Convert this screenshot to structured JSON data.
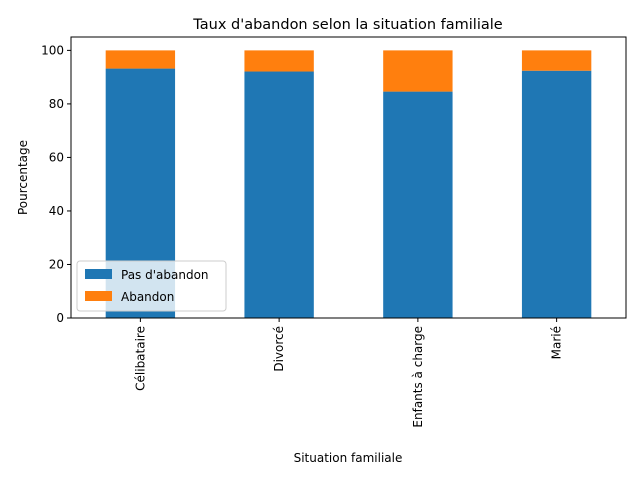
{
  "chart_data": {
    "type": "bar",
    "stacked": true,
    "title": "Taux d'abandon selon la situation familiale",
    "xlabel": "Situation familiale",
    "ylabel": "Pourcentage",
    "categories": [
      "Célibataire",
      "Divorcé",
      "Enfants à charge",
      "Marié"
    ],
    "series": [
      {
        "name": "Pas d'abandon",
        "values": [
          93.2,
          92.1,
          84.6,
          92.4
        ],
        "color": "#1f77b4"
      },
      {
        "name": "Abandon",
        "values": [
          6.8,
          7.9,
          15.4,
          7.6
        ],
        "color": "#ff7f0e"
      }
    ],
    "ylim": [
      0,
      105
    ],
    "yticks": [
      0,
      20,
      40,
      60,
      80,
      100
    ],
    "grid": false,
    "legend_position": "lower-left"
  }
}
